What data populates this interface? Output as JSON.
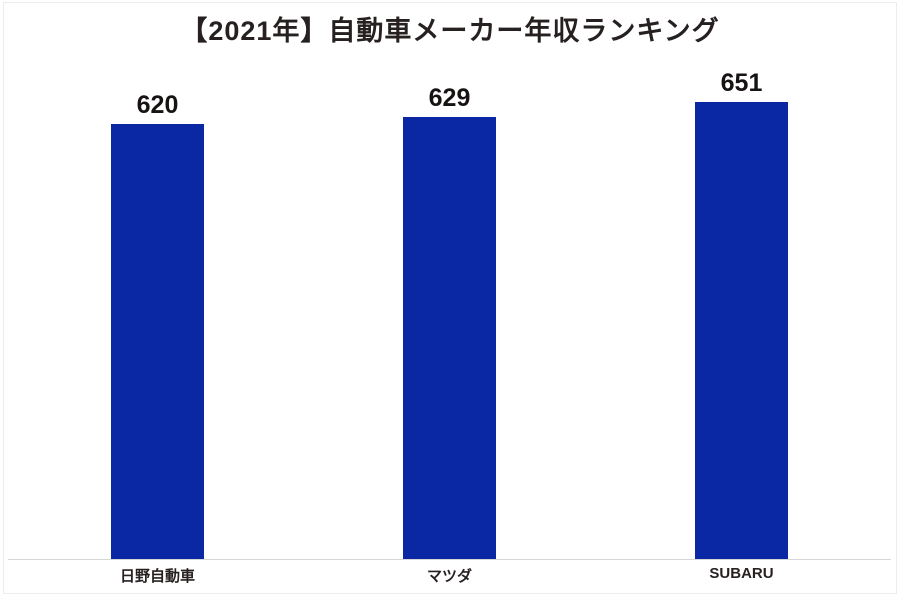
{
  "chart_data": {
    "type": "bar",
    "title": "【2021年】自動車メーカー年収ランキング",
    "categories": [
      "日野自動車",
      "マツダ",
      "SUBARU"
    ],
    "values": [
      620,
      629,
      651
    ],
    "series_name": "年収",
    "bar_color": "#0a28a4",
    "value_label_color": "#171313",
    "title_color": "#272020",
    "baseline_color": "#d6d6d6",
    "grid": false,
    "legend_position": "none",
    "y_axis_visible": false,
    "x_axis_visible": true,
    "ylim_implied": [
      0,
      760
    ]
  }
}
